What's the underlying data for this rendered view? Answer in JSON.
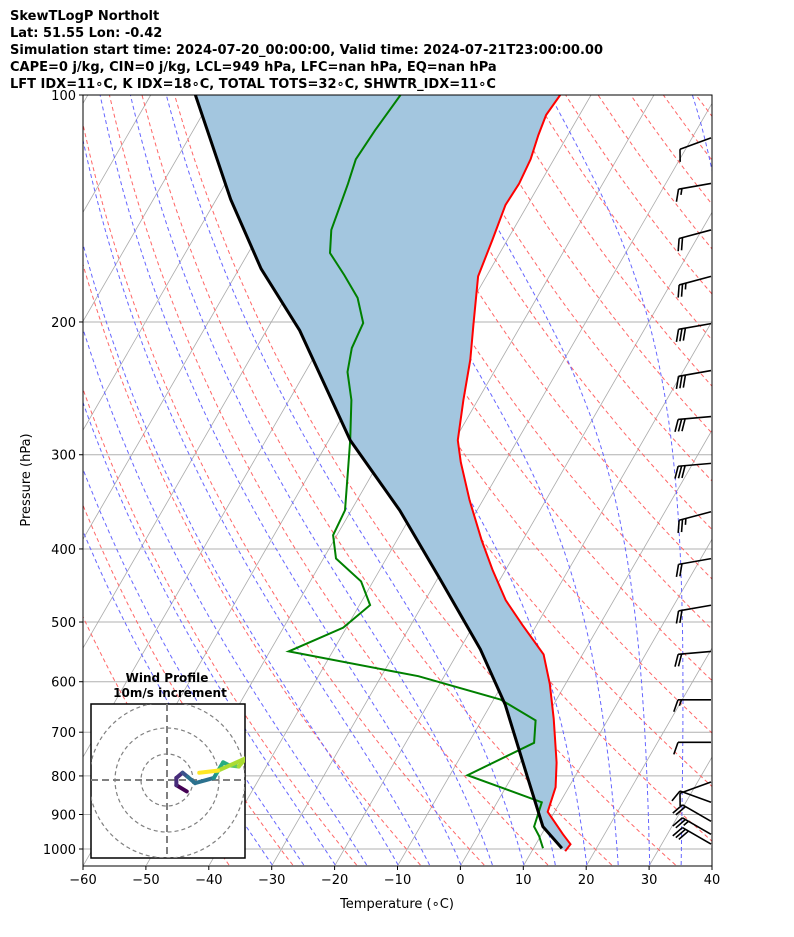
{
  "header": {
    "line1": "SkewTLogP Northolt",
    "line2": "Lat: 51.55   Lon: -0.42",
    "line3": "Simulation start time: 2024-07-20_00:00:00, Valid time: 2024-07-21T23:00:00.00",
    "line4": "CAPE=0 j/kg, CIN=0 j/kg, LCL=949 hPa, LFC=nan hPa, EQ=nan hPa",
    "line5": "LFT IDX=11∘C, K IDX=18∘C, TOTAL TOTS=32∘C, SHWTR_IDX=11∘C"
  },
  "chart_data": {
    "type": "line",
    "title": "SkewTLogP Northolt",
    "xlabel": "Temperature (∘C)",
    "ylabel": "Pressure (hPa)",
    "xlim": [
      -60,
      40
    ],
    "ylim": [
      1050,
      100
    ],
    "yscale": "log",
    "skew_deg": 30,
    "grid": true,
    "x_ticks": [
      -60,
      -50,
      -40,
      -30,
      -20,
      -10,
      0,
      10,
      20,
      30,
      40
    ],
    "x_tick_labels": [
      "−60",
      "−50",
      "−40",
      "−30",
      "−20",
      "−10",
      "0",
      "10",
      "20",
      "30",
      "40"
    ],
    "y_ticks": [
      100,
      200,
      300,
      400,
      500,
      600,
      700,
      800,
      900,
      1000
    ],
    "y_tick_labels": [
      "100",
      "200",
      "300",
      "400",
      "500",
      "600",
      "700",
      "800",
      "900",
      "1000"
    ],
    "colors": {
      "temperature": "#ff0000",
      "dewpoint": "#008000",
      "parcel": "#000000",
      "cape_fill": "#a3c6df",
      "dry_adiabat": "#ff6666",
      "moist_adiabat": "#6666ff",
      "isotherm": "#aaaaaa"
    },
    "series": [
      {
        "name": "Temperature",
        "pressure": [
          100,
          106.3,
          113,
          121.7,
          131.1,
          139.9,
          155.5,
          174,
          201.8,
          224.4,
          253.8,
          287,
          306.9,
          344.8,
          389.7,
          427,
          467.8,
          504.2,
          551.9,
          604,
          671.5,
          768.1,
          828,
          892.6,
          956,
          985.4,
          1006.8
        ],
        "values": [
          -54.9,
          -55.3,
          -54.7,
          -53.7,
          -53.3,
          -53.5,
          -52.4,
          -51.3,
          -47.6,
          -44.9,
          -42.3,
          -39.5,
          -37.0,
          -32.1,
          -26.5,
          -22.0,
          -17.2,
          -12.3,
          -6.2,
          -2.5,
          1.3,
          5.8,
          7.9,
          8.9,
          13.4,
          15.5,
          15.3
        ]
      },
      {
        "name": "Dewpoint",
        "pressure": [
          100,
          111.3,
          121.7,
          131.1,
          142,
          151,
          162,
          173.3,
          185.8,
          200.6,
          216.6,
          233,
          253.8,
          287,
          314.5,
          355.5,
          383.5,
          411.8,
          441.7,
          474.8,
          508.8,
          546.9,
          590,
          633.5,
          675.3,
          723,
          798.2,
          867.2,
          933.8,
          962,
          997.6
        ],
        "values": [
          -80.3,
          -81.1,
          -81.5,
          -80.5,
          -79.6,
          -78.9,
          -77,
          -72.7,
          -68.5,
          -65.3,
          -64.8,
          -63.3,
          -60.1,
          -56.6,
          -54.2,
          -51,
          -50.6,
          -48,
          -41.9,
          -38.3,
          -40.5,
          -47,
          -24.1,
          -8.9,
          -1.4,
          0.4,
          -7.2,
          7.1,
          8.1,
          9.8,
          11.5
        ]
      },
      {
        "name": "Parcel",
        "pressure": [
          100,
          137.6,
          170,
          205.3,
          287,
          355.5,
          439.1,
          543.6,
          643.4,
          796,
          933.8,
          997.6
        ],
        "values": [
          -112.9,
          -97.7,
          -86.5,
          -74.7,
          -56.6,
          -42.3,
          -29.5,
          -16.7,
          -7.7,
          2.1,
          9.5,
          14.5
        ]
      }
    ],
    "wind_barbs": {
      "units": "kt",
      "pressure": [
        114,
        131,
        151,
        174,
        201,
        232,
        267,
        308,
        357,
        412,
        475,
        547,
        634,
        722,
        815,
        867,
        919,
        956,
        985
      ],
      "speed": [
        10,
        15,
        20,
        25,
        30,
        30,
        30,
        30,
        25,
        20,
        20,
        20,
        15,
        10,
        10,
        10,
        20,
        25,
        30
      ],
      "direction": [
        250,
        260,
        255,
        255,
        260,
        260,
        265,
        265,
        255,
        260,
        260,
        265,
        270,
        270,
        250,
        290,
        300,
        300,
        300
      ]
    },
    "hodograph": {
      "title": "Wind Profile",
      "subtitle": "10m/s increment",
      "ring_step_ms": 10,
      "rings": 3,
      "u": [
        7.6,
        3.6,
        3.6,
        6,
        8,
        10.8,
        18,
        19.2,
        21.6,
        24,
        27.6,
        30.4,
        19.6,
        12.4
      ],
      "v": [
        -4.4,
        -2,
        0.8,
        2.8,
        1.2,
        -1.2,
        0.8,
        2.8,
        6.8,
        5.6,
        5.2,
        8.4,
        3.6,
        2.8
      ]
    }
  }
}
